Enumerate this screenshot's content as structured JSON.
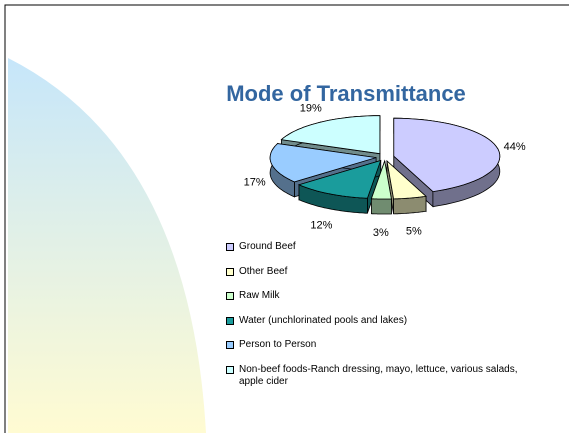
{
  "chart_data": {
    "type": "pie",
    "title": "Mode of Transmittance",
    "categories": [
      "Ground Beef",
      "Other Beef",
      "Raw Milk",
      "Water (unchlorinated pools and lakes)",
      "Person to Person",
      "Non-beef foods-Ranch dressing, mayo, lettuce, various salads, apple cider"
    ],
    "values": [
      44,
      5,
      3,
      12,
      17,
      19
    ],
    "value_labels": [
      "44%",
      "5%",
      "3%",
      "12%",
      "17%",
      "19%"
    ],
    "colors": [
      "#ccccff",
      "#ffffcc",
      "#ccffcc",
      "#1a9c9c",
      "#99ccff",
      "#ccffff"
    ],
    "legend": "bottom"
  }
}
